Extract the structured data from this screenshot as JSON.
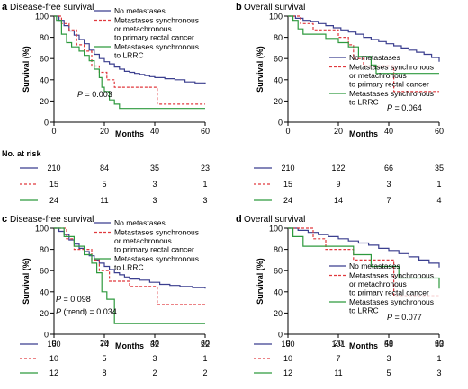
{
  "colors": {
    "no_met": "#3b3f8f",
    "met_primary": "#e0393e",
    "met_lrrc": "#2e9a3e"
  },
  "chart_data": [
    {
      "panel": "a",
      "type": "line",
      "title": "Disease-free survival",
      "xlabel": "Months",
      "ylabel": "Survival (%)",
      "xlim": [
        0,
        60
      ],
      "ylim": [
        0,
        100
      ],
      "xticks": [
        0,
        20,
        40,
        60
      ],
      "yticks": [
        0,
        20,
        40,
        60,
        80,
        100
      ],
      "legend_position": "top-right",
      "annotations": [
        {
          "text": "P = 0.003"
        }
      ],
      "series": [
        {
          "name": "No metastases",
          "color_key": "no_met",
          "style": "solid",
          "x": [
            0,
            2,
            4,
            6,
            8,
            10,
            12,
            14,
            16,
            18,
            20,
            22,
            24,
            26,
            28,
            30,
            32,
            34,
            36,
            38,
            40,
            44,
            48,
            52,
            56,
            60
          ],
          "y": [
            100,
            96,
            91,
            86,
            82,
            78,
            74,
            68,
            64,
            60,
            57,
            55,
            52,
            50,
            48,
            47,
            46,
            45,
            44,
            43,
            42,
            41,
            40,
            38,
            37,
            36
          ]
        },
        {
          "name": "Metastases synchronous or metachronous to primary rectal cancer",
          "color_key": "met_primary",
          "style": "dashed",
          "x": [
            0,
            3,
            6,
            9,
            12,
            15,
            18,
            21,
            24,
            30,
            35,
            41,
            60
          ],
          "y": [
            100,
            93,
            87,
            73,
            67,
            53,
            47,
            40,
            33,
            33,
            33,
            17,
            17
          ]
        },
        {
          "name": "Metastases synchronous to LRRC",
          "color_key": "met_lrrc",
          "style": "solid",
          "x": [
            0,
            1,
            3,
            5,
            7,
            10,
            12,
            14,
            16,
            18,
            19,
            20,
            22,
            24,
            26,
            60
          ],
          "y": [
            100,
            96,
            83,
            75,
            71,
            67,
            63,
            58,
            50,
            42,
            33,
            29,
            21,
            17,
            13,
            13
          ]
        }
      ],
      "risk_table": {
        "label": "No. at risk",
        "times": [
          0,
          20,
          40,
          60
        ],
        "rows": [
          [
            "210",
            "84",
            "35",
            "23"
          ],
          [
            "15",
            "5",
            "3",
            "1"
          ],
          [
            "24",
            "11",
            "3",
            "3"
          ]
        ]
      }
    },
    {
      "panel": "b",
      "type": "line",
      "title": "Overall survival",
      "xlabel": "Months",
      "ylabel": "Survival (%)",
      "xlim": [
        0,
        60
      ],
      "ylim": [
        0,
        100
      ],
      "xticks": [
        0,
        20,
        40,
        60
      ],
      "yticks": [
        0,
        20,
        40,
        60,
        80,
        100
      ],
      "legend_position": "bottom-center",
      "annotations": [
        {
          "text": "P = 0.064"
        }
      ],
      "series": [
        {
          "name": "No metastases",
          "color_key": "no_met",
          "style": "solid",
          "x": [
            0,
            3,
            6,
            9,
            12,
            15,
            18,
            21,
            24,
            27,
            30,
            33,
            36,
            39,
            42,
            45,
            48,
            51,
            54,
            57,
            60
          ],
          "y": [
            100,
            98,
            96,
            95,
            93,
            91,
            89,
            87,
            85,
            83,
            80,
            78,
            76,
            74,
            72,
            70,
            68,
            66,
            64,
            61,
            57
          ]
        },
        {
          "name": "Metastases synchronous or metachronous to primary rectal cancer",
          "color_key": "met_primary",
          "style": "dashed",
          "x": [
            0,
            5,
            10,
            15,
            20,
            24,
            26,
            30,
            35,
            42,
            60
          ],
          "y": [
            100,
            93,
            87,
            87,
            80,
            73,
            60,
            53,
            53,
            29,
            29
          ]
        },
        {
          "name": "Metastases synchronous to LRRC",
          "color_key": "met_lrrc",
          "style": "solid",
          "x": [
            0,
            2,
            4,
            6,
            10,
            15,
            20,
            24,
            28,
            33,
            35,
            42,
            60
          ],
          "y": [
            100,
            96,
            88,
            83,
            83,
            79,
            75,
            71,
            62,
            54,
            46,
            46,
            46
          ]
        }
      ],
      "risk_table": {
        "label": "No. at risk",
        "times": [
          0,
          20,
          40,
          60
        ],
        "rows": [
          [
            "210",
            "122",
            "66",
            "35"
          ],
          [
            "15",
            "9",
            "3",
            "1"
          ],
          [
            "24",
            "14",
            "7",
            "4"
          ]
        ]
      }
    },
    {
      "panel": "c",
      "type": "line",
      "title": "Disease-free survival",
      "xlabel": "Months",
      "ylabel": "Survival (%)",
      "xlim": [
        0,
        60
      ],
      "ylim": [
        0,
        100
      ],
      "xticks": [
        0,
        20,
        40,
        60
      ],
      "yticks": [
        0,
        20,
        40,
        60,
        80,
        100
      ],
      "legend_position": "top-right",
      "annotations": [
        {
          "text": "P = 0.098"
        },
        {
          "text": "P (trend) = 0.034"
        }
      ],
      "series": [
        {
          "name": "No metastases",
          "color_key": "no_met",
          "style": "solid",
          "x": [
            0,
            2,
            4,
            6,
            8,
            10,
            12,
            14,
            16,
            18,
            20,
            22,
            24,
            26,
            28,
            30,
            34,
            38,
            42,
            46,
            50,
            55,
            60
          ],
          "y": [
            100,
            97,
            94,
            89,
            85,
            81,
            78,
            74,
            70,
            67,
            64,
            61,
            58,
            56,
            54,
            52,
            51,
            49,
            47,
            46,
            45,
            44,
            43
          ]
        },
        {
          "name": "Metastases synchronous or metachronous to primary rectal cancer",
          "color_key": "met_primary",
          "style": "dashed",
          "x": [
            0,
            5,
            8,
            15,
            18,
            22,
            26,
            30,
            35,
            41,
            60
          ],
          "y": [
            100,
            90,
            80,
            70,
            60,
            50,
            50,
            45,
            45,
            28,
            28
          ]
        },
        {
          "name": "Metastases synchronous to LRRC",
          "color_key": "met_lrrc",
          "style": "solid",
          "x": [
            0,
            4,
            8,
            12,
            15,
            17,
            19,
            21,
            24,
            60
          ],
          "y": [
            100,
            92,
            83,
            75,
            67,
            58,
            40,
            33,
            10,
            10
          ]
        }
      ],
      "risk_table": {
        "label": "No. at risk",
        "times": [
          0,
          20,
          40,
          60
        ],
        "rows": [
          [
            "160",
            "74",
            "32",
            "22"
          ],
          [
            "10",
            "5",
            "3",
            "1"
          ],
          [
            "12",
            "8",
            "2",
            "2"
          ]
        ]
      }
    },
    {
      "panel": "d",
      "type": "line",
      "title": "Overall survival",
      "xlabel": "Months",
      "ylabel": "Survival (%)",
      "xlim": [
        0,
        60
      ],
      "ylim": [
        0,
        100
      ],
      "xticks": [
        0,
        20,
        40,
        60
      ],
      "yticks": [
        0,
        20,
        40,
        60,
        80,
        100
      ],
      "legend_position": "bottom-center",
      "annotations": [
        {
          "text": "P = 0.077"
        }
      ],
      "series": [
        {
          "name": "No metastases",
          "color_key": "no_met",
          "style": "solid",
          "x": [
            0,
            4,
            8,
            12,
            16,
            20,
            24,
            28,
            32,
            36,
            40,
            44,
            48,
            52,
            56,
            60
          ],
          "y": [
            100,
            98,
            96,
            94,
            92,
            90,
            88,
            86,
            84,
            81,
            79,
            76,
            73,
            70,
            67,
            63
          ]
        },
        {
          "name": "Metastases synchronous or metachronous to primary rectal cancer",
          "color_key": "met_primary",
          "style": "dashed",
          "x": [
            0,
            10,
            15,
            20,
            26,
            30,
            35,
            42,
            60
          ],
          "y": [
            100,
            90,
            80,
            80,
            70,
            70,
            70,
            36,
            36
          ]
        },
        {
          "name": "Metastases synchronous to LRRC",
          "color_key": "met_lrrc",
          "style": "solid",
          "x": [
            0,
            2,
            6,
            12,
            20,
            26,
            33,
            44,
            60
          ],
          "y": [
            100,
            92,
            83,
            83,
            83,
            75,
            64,
            53,
            43
          ]
        }
      ],
      "risk_table": {
        "label": "No. at risk",
        "times": [
          0,
          20,
          40,
          60
        ],
        "rows": [
          [
            "160",
            "101",
            "58",
            "33"
          ],
          [
            "10",
            "7",
            "3",
            "1"
          ],
          [
            "12",
            "11",
            "5",
            "3"
          ]
        ]
      }
    }
  ]
}
